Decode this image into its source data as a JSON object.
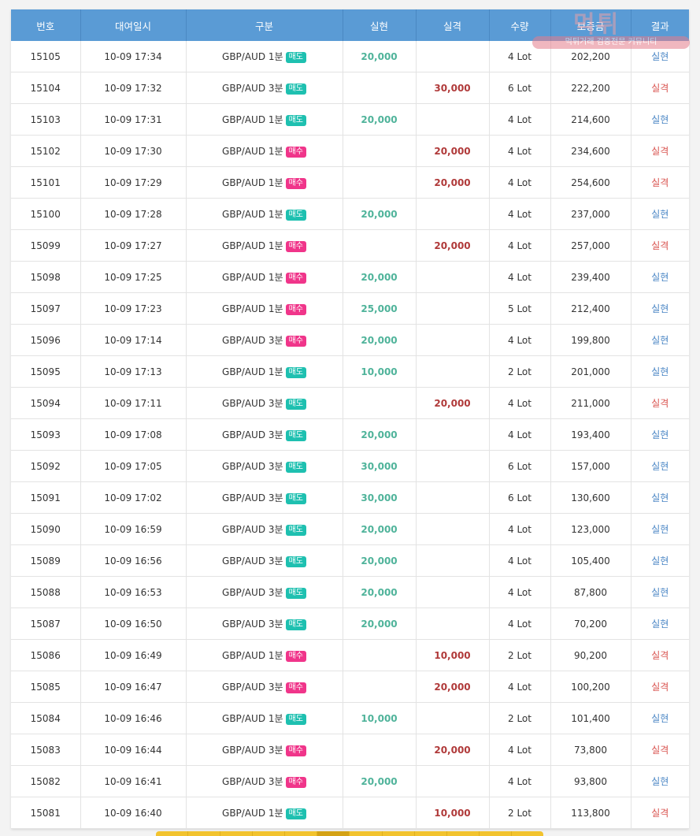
{
  "table": {
    "headers": [
      "번호",
      "대여일시",
      "구분",
      "실현",
      "실격",
      "수량",
      "보증금",
      "결과"
    ],
    "rows": [
      {
        "no": "15105",
        "datetime": "10-09 17:34",
        "pair": "GBP/AUD",
        "period": "1분",
        "side": "매도",
        "win": "20,000",
        "loss": "",
        "qty": "4 Lot",
        "deposit": "202,200",
        "result": "실현"
      },
      {
        "no": "15104",
        "datetime": "10-09 17:32",
        "pair": "GBP/AUD",
        "period": "3분",
        "side": "매도",
        "win": "",
        "loss": "30,000",
        "qty": "6 Lot",
        "deposit": "222,200",
        "result": "실격"
      },
      {
        "no": "15103",
        "datetime": "10-09 17:31",
        "pair": "GBP/AUD",
        "period": "1분",
        "side": "매도",
        "win": "20,000",
        "loss": "",
        "qty": "4 Lot",
        "deposit": "214,600",
        "result": "실현"
      },
      {
        "no": "15102",
        "datetime": "10-09 17:30",
        "pair": "GBP/AUD",
        "period": "1분",
        "side": "매수",
        "win": "",
        "loss": "20,000",
        "qty": "4 Lot",
        "deposit": "234,600",
        "result": "실격"
      },
      {
        "no": "15101",
        "datetime": "10-09 17:29",
        "pair": "GBP/AUD",
        "period": "1분",
        "side": "매수",
        "win": "",
        "loss": "20,000",
        "qty": "4 Lot",
        "deposit": "254,600",
        "result": "실격"
      },
      {
        "no": "15100",
        "datetime": "10-09 17:28",
        "pair": "GBP/AUD",
        "period": "1분",
        "side": "매도",
        "win": "20,000",
        "loss": "",
        "qty": "4 Lot",
        "deposit": "237,000",
        "result": "실현"
      },
      {
        "no": "15099",
        "datetime": "10-09 17:27",
        "pair": "GBP/AUD",
        "period": "1분",
        "side": "매수",
        "win": "",
        "loss": "20,000",
        "qty": "4 Lot",
        "deposit": "257,000",
        "result": "실격"
      },
      {
        "no": "15098",
        "datetime": "10-09 17:25",
        "pair": "GBP/AUD",
        "period": "1분",
        "side": "매수",
        "win": "20,000",
        "loss": "",
        "qty": "4 Lot",
        "deposit": "239,400",
        "result": "실현"
      },
      {
        "no": "15097",
        "datetime": "10-09 17:23",
        "pair": "GBP/AUD",
        "period": "1분",
        "side": "매수",
        "win": "25,000",
        "loss": "",
        "qty": "5 Lot",
        "deposit": "212,400",
        "result": "실현"
      },
      {
        "no": "15096",
        "datetime": "10-09 17:14",
        "pair": "GBP/AUD",
        "period": "3분",
        "side": "매수",
        "win": "20,000",
        "loss": "",
        "qty": "4 Lot",
        "deposit": "199,800",
        "result": "실현"
      },
      {
        "no": "15095",
        "datetime": "10-09 17:13",
        "pair": "GBP/AUD",
        "period": "1분",
        "side": "매도",
        "win": "10,000",
        "loss": "",
        "qty": "2 Lot",
        "deposit": "201,000",
        "result": "실현"
      },
      {
        "no": "15094",
        "datetime": "10-09 17:11",
        "pair": "GBP/AUD",
        "period": "3분",
        "side": "매도",
        "win": "",
        "loss": "20,000",
        "qty": "4 Lot",
        "deposit": "211,000",
        "result": "실격"
      },
      {
        "no": "15093",
        "datetime": "10-09 17:08",
        "pair": "GBP/AUD",
        "period": "3분",
        "side": "매도",
        "win": "20,000",
        "loss": "",
        "qty": "4 Lot",
        "deposit": "193,400",
        "result": "실현"
      },
      {
        "no": "15092",
        "datetime": "10-09 17:05",
        "pair": "GBP/AUD",
        "period": "3분",
        "side": "매도",
        "win": "30,000",
        "loss": "",
        "qty": "6 Lot",
        "deposit": "157,000",
        "result": "실현"
      },
      {
        "no": "15091",
        "datetime": "10-09 17:02",
        "pair": "GBP/AUD",
        "period": "3분",
        "side": "매도",
        "win": "30,000",
        "loss": "",
        "qty": "6 Lot",
        "deposit": "130,600",
        "result": "실현"
      },
      {
        "no": "15090",
        "datetime": "10-09 16:59",
        "pair": "GBP/AUD",
        "period": "3분",
        "side": "매도",
        "win": "20,000",
        "loss": "",
        "qty": "4 Lot",
        "deposit": "123,000",
        "result": "실현"
      },
      {
        "no": "15089",
        "datetime": "10-09 16:56",
        "pair": "GBP/AUD",
        "period": "3분",
        "side": "매도",
        "win": "20,000",
        "loss": "",
        "qty": "4 Lot",
        "deposit": "105,400",
        "result": "실현"
      },
      {
        "no": "15088",
        "datetime": "10-09 16:53",
        "pair": "GBP/AUD",
        "period": "3분",
        "side": "매도",
        "win": "20,000",
        "loss": "",
        "qty": "4 Lot",
        "deposit": "87,800",
        "result": "실현"
      },
      {
        "no": "15087",
        "datetime": "10-09 16:50",
        "pair": "GBP/AUD",
        "period": "3분",
        "side": "매도",
        "win": "20,000",
        "loss": "",
        "qty": "4 Lot",
        "deposit": "70,200",
        "result": "실현"
      },
      {
        "no": "15086",
        "datetime": "10-09 16:49",
        "pair": "GBP/AUD",
        "period": "1분",
        "side": "매수",
        "win": "",
        "loss": "10,000",
        "qty": "2 Lot",
        "deposit": "90,200",
        "result": "실격"
      },
      {
        "no": "15085",
        "datetime": "10-09 16:47",
        "pair": "GBP/AUD",
        "period": "3분",
        "side": "매수",
        "win": "",
        "loss": "20,000",
        "qty": "4 Lot",
        "deposit": "100,200",
        "result": "실격"
      },
      {
        "no": "15084",
        "datetime": "10-09 16:46",
        "pair": "GBP/AUD",
        "period": "1분",
        "side": "매도",
        "win": "10,000",
        "loss": "",
        "qty": "2 Lot",
        "deposit": "101,400",
        "result": "실현"
      },
      {
        "no": "15083",
        "datetime": "10-09 16:44",
        "pair": "GBP/AUD",
        "period": "3분",
        "side": "매수",
        "win": "",
        "loss": "20,000",
        "qty": "4 Lot",
        "deposit": "73,800",
        "result": "실격"
      },
      {
        "no": "15082",
        "datetime": "10-09 16:41",
        "pair": "GBP/AUD",
        "period": "3분",
        "side": "매수",
        "win": "20,000",
        "loss": "",
        "qty": "4 Lot",
        "deposit": "93,800",
        "result": "실현"
      },
      {
        "no": "15081",
        "datetime": "10-09 16:40",
        "pair": "GBP/AUD",
        "period": "1분",
        "side": "매도",
        "win": "",
        "loss": "10,000",
        "qty": "2 Lot",
        "deposit": "113,800",
        "result": "실격"
      }
    ]
  },
  "watermark": {
    "title": "먹튀",
    "subtitle": "먹튀거래 검증전문 커뮤니티"
  },
  "colors": {
    "header_bg": "#5a9bd5",
    "sell_badge": "#1ec0b0",
    "buy_badge": "#f0358a",
    "win_amount": "#4fb39a",
    "loss_amount": "#b03a3a",
    "result_win": "#4a86c5",
    "result_loss": "#d9534f",
    "pager": "#f2c32e"
  }
}
